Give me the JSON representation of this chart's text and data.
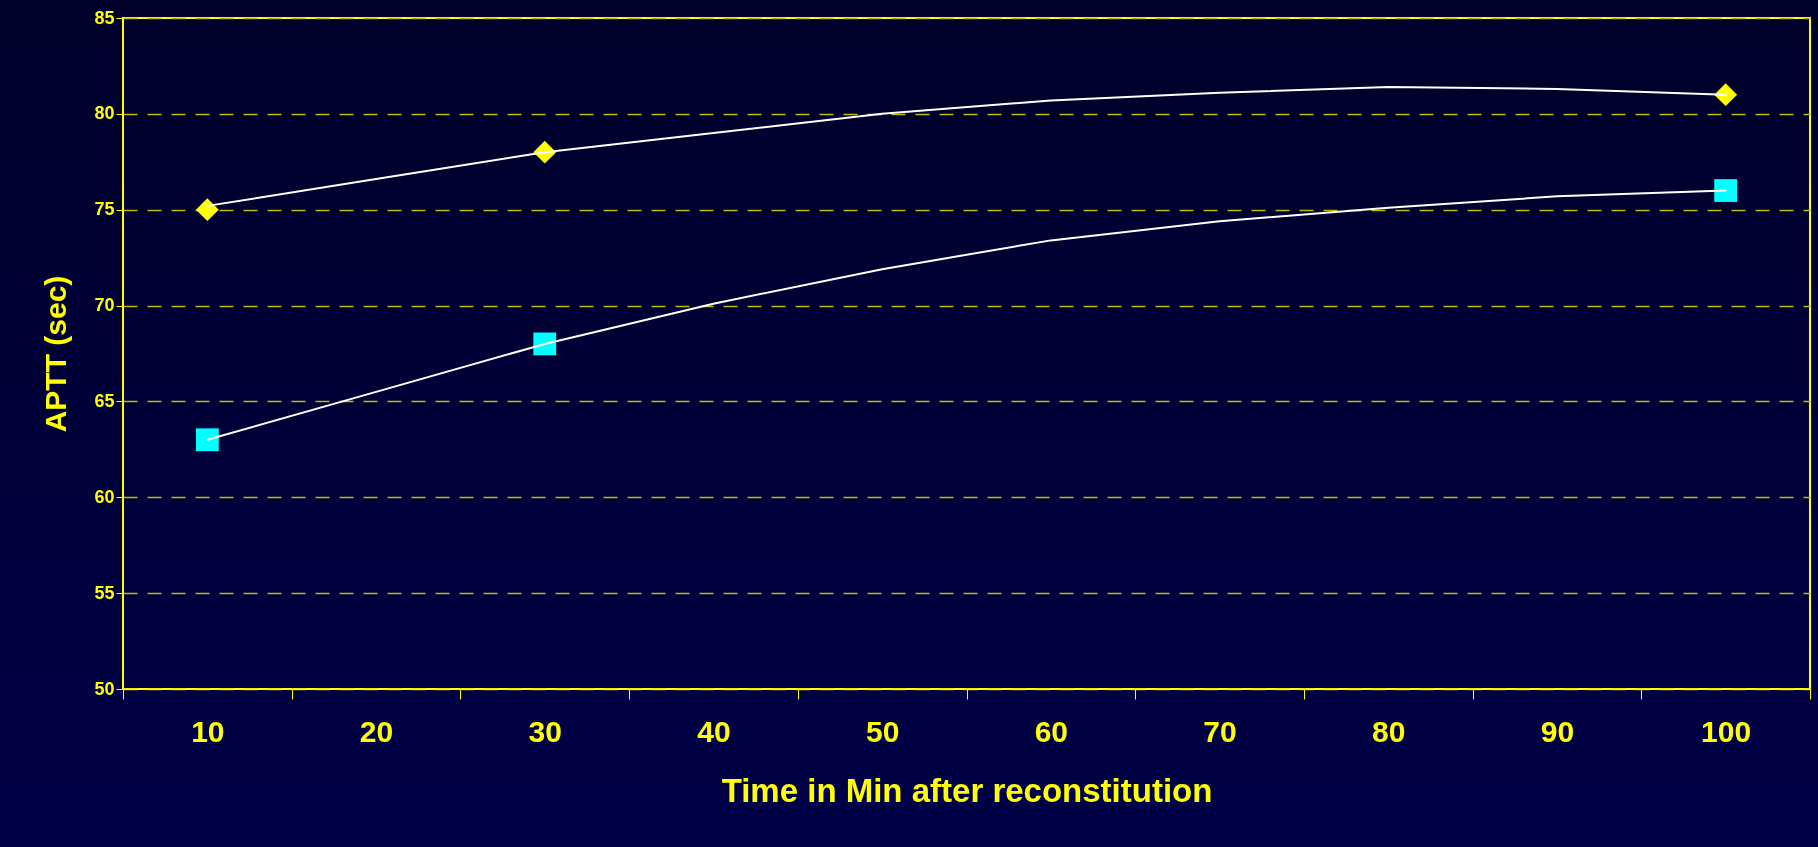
{
  "chart_data": {
    "type": "scatter",
    "xlabel": "Time in Min after reconstitution",
    "ylabel": "APTT (sec)",
    "categories": [
      "10",
      "20",
      "30",
      "40",
      "50",
      "60",
      "70",
      "80",
      "90",
      "100"
    ],
    "series": [
      {
        "color": "#ffff00",
        "marker": "diamond",
        "values": [
          75,
          null,
          78,
          null,
          null,
          null,
          null,
          null,
          null,
          81
        ]
      },
      {
        "color": "#00ffff",
        "marker": "square",
        "values": [
          63,
          null,
          68,
          null,
          null,
          null,
          null,
          null,
          null,
          76
        ]
      },
      {
        "type": "line",
        "color": "#ffffff",
        "marker": "none",
        "values": [
          75.2,
          76.6,
          78,
          79.0,
          80.0,
          80.7,
          81.1,
          81.4,
          81.3,
          81.0
        ]
      },
      {
        "type": "line",
        "color": "#ffffff",
        "marker": "none",
        "values": [
          63,
          65.5,
          68,
          70.1,
          71.9,
          73.4,
          74.4,
          75.1,
          75.7,
          76.0
        ]
      }
    ],
    "ylim": [
      50,
      85
    ],
    "yticks": [
      50,
      55,
      60,
      65,
      70,
      75,
      80,
      85
    ],
    "grid": "y"
  }
}
